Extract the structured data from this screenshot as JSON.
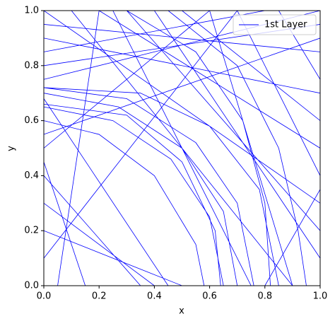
{
  "chart_data": {
    "type": "line",
    "xlabel": "x",
    "ylabel": "y",
    "xlim": [
      0,
      1
    ],
    "ylim": [
      0,
      1
    ],
    "xticks": [
      {
        "value": 0,
        "label": "0.0"
      },
      0.2,
      0.4,
      0.6,
      0.8,
      {
        "value": 1,
        "label": "1.0"
      }
    ],
    "yticks": [
      {
        "value": 0,
        "label": "0.0"
      },
      0.2,
      0.4,
      0.6,
      0.8,
      {
        "value": 1,
        "label": "1.0"
      }
    ],
    "grid": false,
    "legend": "upper right",
    "series": [
      {
        "name": "1st Layer",
        "color": "#0000ff",
        "x": [
          0,
          0.25,
          0.46,
          0.6,
          0.65,
          null,
          0,
          0.27,
          0.5,
          0.65,
          0.7,
          null,
          0,
          0.3,
          0.55,
          0.7,
          0.76,
          null,
          0,
          0.3,
          0.5,
          0.62,
          0.64,
          null,
          0,
          0.2,
          0.4,
          0.55,
          0.58,
          null,
          0,
          1,
          null,
          0,
          1,
          null,
          0.1,
          0.9,
          null,
          0,
          0.6,
          null,
          0.2,
          1,
          null,
          0,
          1,
          null,
          0.3,
          1,
          null,
          0,
          0.4,
          null,
          0,
          0.7,
          null,
          0.5,
          1,
          null,
          0,
          1,
          null,
          0.05,
          0.2,
          null,
          0,
          0.35,
          null,
          0.4,
          1,
          null,
          0,
          1,
          null,
          0.6,
          0.9,
          null,
          0,
          0.5,
          null,
          0.15,
          0,
          null,
          0.7,
          1,
          null,
          0,
          0.8,
          null,
          0.8,
          1,
          null,
          0,
          1,
          null,
          0.25,
          0.75,
          null,
          0.85,
          1,
          null,
          0,
          0.45,
          null,
          0.3,
          0.55,
          0.72,
          0.8,
          0.82,
          null,
          0.45,
          0.7,
          0.85,
          0.92,
          0.95,
          null,
          0,
          0.35,
          0.6,
          0.78,
          0.85
        ],
        "values": [
          0.65,
          0.6,
          0.46,
          0.25,
          0,
          null,
          0.7,
          0.65,
          0.5,
          0.27,
          0,
          null,
          0.72,
          0.68,
          0.52,
          0.3,
          0,
          null,
          0.66,
          0.62,
          0.45,
          0.2,
          0,
          null,
          0.6,
          0.55,
          0.4,
          0.15,
          0,
          null,
          1,
          0.3,
          null,
          0.9,
          0.7,
          null,
          1,
          0,
          null,
          0.5,
          1,
          null,
          1,
          0.5,
          null,
          0.8,
          0.95,
          null,
          1,
          0.2,
          null,
          0.3,
          0,
          null,
          0.1,
          1,
          null,
          1,
          0.6,
          null,
          0.95,
          0.85,
          null,
          0,
          1,
          null,
          0.4,
          0,
          null,
          1,
          0.1,
          null,
          0.75,
          1,
          null,
          1,
          0,
          null,
          0.2,
          0,
          null,
          0,
          0.45,
          null,
          1,
          0.4,
          null,
          0.85,
          1,
          null,
          0,
          0.35,
          null,
          0.55,
          0.9,
          null,
          1,
          0,
          null,
          1,
          0.75,
          null,
          0.68,
          0,
          null,
          1,
          0.85,
          0.6,
          0.3,
          0,
          null,
          1,
          0.8,
          0.5,
          0.2,
          0,
          null,
          0.72,
          0.7,
          0.58,
          0.35,
          0
        ]
      }
    ]
  }
}
